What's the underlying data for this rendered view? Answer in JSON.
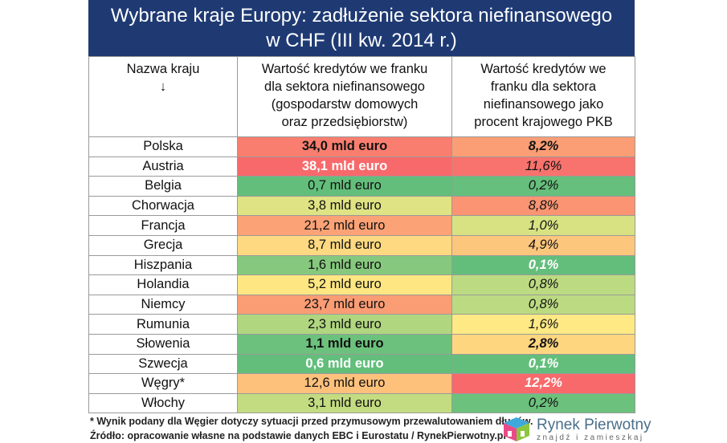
{
  "title_line1": "Wybrane kraje Europy: zadłużenie sektora niefinansowego",
  "title_line2": "w CHF (III kw. 2014 r.)",
  "chart_data": {
    "type": "table",
    "columns": [
      "Nazwa kraju ↓",
      "Wartość kredytów we franku dla sektora niefinansowego (gospodarstw domowych oraz przedsiębiorstw)",
      "Wartość kredytów we franku dla sektora niefinansowego jako procent krajowego PKB"
    ],
    "rows": [
      {
        "country": "Polska",
        "value": "34,0 mld euro",
        "pct": "8,2%",
        "c2": "#f97e6f",
        "c3": "#fb9e75",
        "s2": "b",
        "s3": "b"
      },
      {
        "country": "Austria",
        "value": "38,1 mld euro",
        "pct": "11,6%",
        "c2": "#f8696b",
        "c3": "#f8736d",
        "s2": "b w",
        "s3": ""
      },
      {
        "country": "Belgia",
        "value": "0,7 mld euro",
        "pct": "0,2%",
        "c2": "#63be7b",
        "c3": "#66bf7c",
        "s2": "",
        "s3": ""
      },
      {
        "country": "Chorwacja",
        "value": "3,8 mld euro",
        "pct": "8,8%",
        "c2": "#dfe383",
        "c3": "#fa9473",
        "s2": "",
        "s3": ""
      },
      {
        "country": "Francja",
        "value": "21,2 mld euro",
        "pct": "1,0%",
        "c2": "#fba276",
        "c3": "#d8e282",
        "s2": "",
        "s3": ""
      },
      {
        "country": "Grecja",
        "value": "8,7 mld euro",
        "pct": "4,9%",
        "c2": "#fed981",
        "c3": "#fdc67d",
        "s2": "",
        "s3": ""
      },
      {
        "country": "Hiszpania",
        "value": "1,6 mld euro",
        "pct": "0,1%",
        "c2": "#86c97e",
        "c3": "#63be7b",
        "s2": "",
        "s3": "b w"
      },
      {
        "country": "Holandia",
        "value": "5,2 mld euro",
        "pct": "0,8%",
        "c2": "#fee783",
        "c3": "#bcda81",
        "s2": "",
        "s3": ""
      },
      {
        "country": "Niemcy",
        "value": "23,7 mld euro",
        "pct": "0,8%",
        "c2": "#fa9c74",
        "c3": "#bcda81",
        "s2": "",
        "s3": ""
      },
      {
        "country": "Rumunia",
        "value": "2,3 mld euro",
        "pct": "1,6%",
        "c2": "#b0d680",
        "c3": "#fee984",
        "s2": "",
        "s3": ""
      },
      {
        "country": "Słowenia",
        "value": "1,1 mld euro",
        "pct": "2,8%",
        "c2": "#6cc17c",
        "c3": "#fed680",
        "s2": "b",
        "s3": "b"
      },
      {
        "country": "Szwecja",
        "value": "0,6 mld euro",
        "pct": "0,1%",
        "c2": "#63be7b",
        "c3": "#63be7b",
        "s2": "b w",
        "s3": "b w"
      },
      {
        "country": "Węgry*",
        "value": "12,6 mld euro",
        "pct": "12,2%",
        "c2": "#fdc17c",
        "c3": "#f8696b",
        "s2": "",
        "s3": "b w"
      },
      {
        "country": "Włochy",
        "value": "3,1 mld euro",
        "pct": "0,2%",
        "c2": "#c4dc81",
        "c3": "#6cc17c",
        "s2": "",
        "s3": ""
      }
    ]
  },
  "header": {
    "col1_line1": "Nazwa kraju",
    "col1_line2": "↓",
    "col2_lines": [
      "Wartość kredytów we franku",
      "dla sektora niefinansowego",
      "(gospodarstw domowych",
      "oraz przedsiębiorstw)"
    ],
    "col3_lines": [
      "Wartość kredytów we",
      "franku dla sektora",
      "niefinansowego jako",
      "procent krajowego PKB"
    ]
  },
  "footnote": "* Wynik podany dla Węgier dotyczy sytuacji przed przymusowym przewalutowaniem długów.",
  "source": "Źródło: opracowanie własne na podstawie danych EBC i Eurostatu / RynekPierwotny.pl",
  "logo": {
    "name": "Rynek Pierwotny",
    "tagline": "znajdź i zamieszkaj"
  },
  "colors": {
    "title_bg": "#1f3a73",
    "high": "#f8696b",
    "mid": "#ffeb84",
    "low": "#63be7b"
  }
}
